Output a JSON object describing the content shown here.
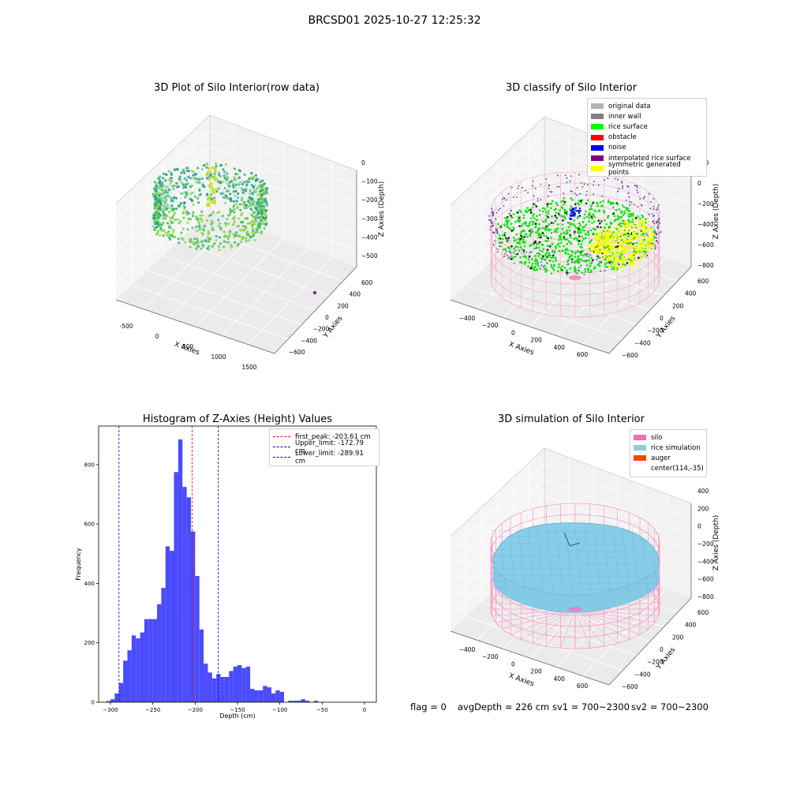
{
  "figure": {
    "suptitle": "BRCSD01 2025-10-27 12:25:32"
  },
  "chart_data": [
    {
      "type": "scatter3d",
      "title": "3D Plot of Silo Interior(row data)",
      "xlabel": "X Axies",
      "ylabel": "Y Axies",
      "zlabel": "Z Axies (Depth)",
      "x_ticks": [
        "-500",
        "0",
        "500",
        "1000",
        "1500"
      ],
      "y_ticks": [
        "600",
        "400",
        "200",
        "0",
        "−200",
        "−400",
        "−600"
      ],
      "z_ticks": [
        "0",
        "−100",
        "−200",
        "−300",
        "−400",
        "−500"
      ],
      "colormap": "viridis"
    },
    {
      "type": "scatter3d",
      "title": "3D classify of Silo Interior",
      "xlabel": "X Axies",
      "ylabel": "Y Axies",
      "zlabel": "Z Axies (Depth)",
      "x_ticks": [
        "−400",
        "−200",
        "0",
        "200",
        "400",
        "600"
      ],
      "y_ticks": [
        "600",
        "400",
        "200",
        "0",
        "−200",
        "−400",
        "−600"
      ],
      "z_ticks": [
        "200",
        "0",
        "−200",
        "−400",
        "−600",
        "−800"
      ],
      "legend": [
        {
          "name": "original data",
          "color": "#b3b3b3"
        },
        {
          "name": "inner wall",
          "color": "#808080"
        },
        {
          "name": "rice surface",
          "color": "#00ff00"
        },
        {
          "name": "obstacle",
          "color": "#ff0000"
        },
        {
          "name": "noise",
          "color": "#0000ff"
        },
        {
          "name": "interpolated rice surface",
          "color": "#800080"
        },
        {
          "name": "symmetric generated points",
          "color": "#ffff00"
        }
      ]
    },
    {
      "type": "bar",
      "title": "Histogram of Z-Axies (Height) Values",
      "xlabel": "Depth (cm)",
      "ylabel": "Frequency",
      "xlim": [
        -314,
        14
      ],
      "ylim": [
        0,
        930
      ],
      "x_ticks": [
        -300,
        -250,
        -200,
        -150,
        -100,
        -50,
        0
      ],
      "y_ticks": [
        0,
        200,
        400,
        600,
        800
      ],
      "bin_width": 5,
      "bins_start": [
        -305,
        -300,
        -295,
        -290,
        -285,
        -280,
        -275,
        -270,
        -265,
        -260,
        -255,
        -250,
        -245,
        -240,
        -235,
        -230,
        -225,
        -220,
        -215,
        -210,
        -205,
        -200,
        -195,
        -190,
        -185,
        -180,
        -175,
        -170,
        -165,
        -160,
        -155,
        -150,
        -145,
        -140,
        -135,
        -130,
        -125,
        -120,
        -115,
        -110,
        -105,
        -100,
        -95,
        -90,
        -85,
        -80,
        -75,
        -70,
        -65,
        -60,
        -55,
        -50,
        -45,
        -40,
        -35,
        -30,
        -25,
        -20,
        -15,
        -10,
        -5
      ],
      "values": [
        4,
        10,
        30,
        65,
        140,
        175,
        225,
        215,
        235,
        280,
        280,
        280,
        330,
        385,
        525,
        510,
        775,
        885,
        725,
        690,
        575,
        425,
        245,
        130,
        100,
        80,
        95,
        85,
        85,
        105,
        120,
        125,
        115,
        120,
        45,
        40,
        40,
        55,
        50,
        30,
        40,
        35,
        0,
        5,
        5,
        5,
        10,
        5,
        0,
        5,
        0,
        0,
        0,
        0,
        0,
        0,
        0,
        0,
        0,
        0,
        0
      ],
      "bar_color": "#4b4bff",
      "lines": [
        {
          "name": "first_peak: -203.61 cm",
          "x": -203.61,
          "color": "#ff0000"
        },
        {
          "name": "Upper_limit: -172.79 cm",
          "x": -172.79,
          "color": "#0000ff"
        },
        {
          "name": "Lower_limit: -289.91 cm",
          "x": -289.91,
          "color": "#0000ff"
        }
      ]
    },
    {
      "type": "surface3d",
      "title": "3D simulation of Silo Interior",
      "xlabel": "X Axies",
      "ylabel": "Y Axies",
      "zlabel": "Z Axies (Depth)",
      "x_ticks": [
        "−400",
        "−200",
        "0",
        "200",
        "400",
        "600"
      ],
      "y_ticks": [
        "600",
        "400",
        "200",
        "0",
        "−200",
        "−400",
        "−600"
      ],
      "z_ticks": [
        "400",
        "200",
        "0",
        "−200",
        "−400",
        "−600",
        "−800"
      ],
      "legend": [
        {
          "name": "silo",
          "color": "#ff69b4"
        },
        {
          "name": "rice simulation",
          "color": "#87ceeb"
        },
        {
          "name": "auger",
          "color": "#ff4500"
        },
        {
          "name": "center(114,-35)",
          "color": "#ffffff"
        }
      ]
    }
  ],
  "status": {
    "flag": "flag = 0",
    "avg_depth": "avgDepth = 226 cm",
    "sv1": "sv1 = 700~2300",
    "sv2": "sv2 = 700~2300"
  }
}
